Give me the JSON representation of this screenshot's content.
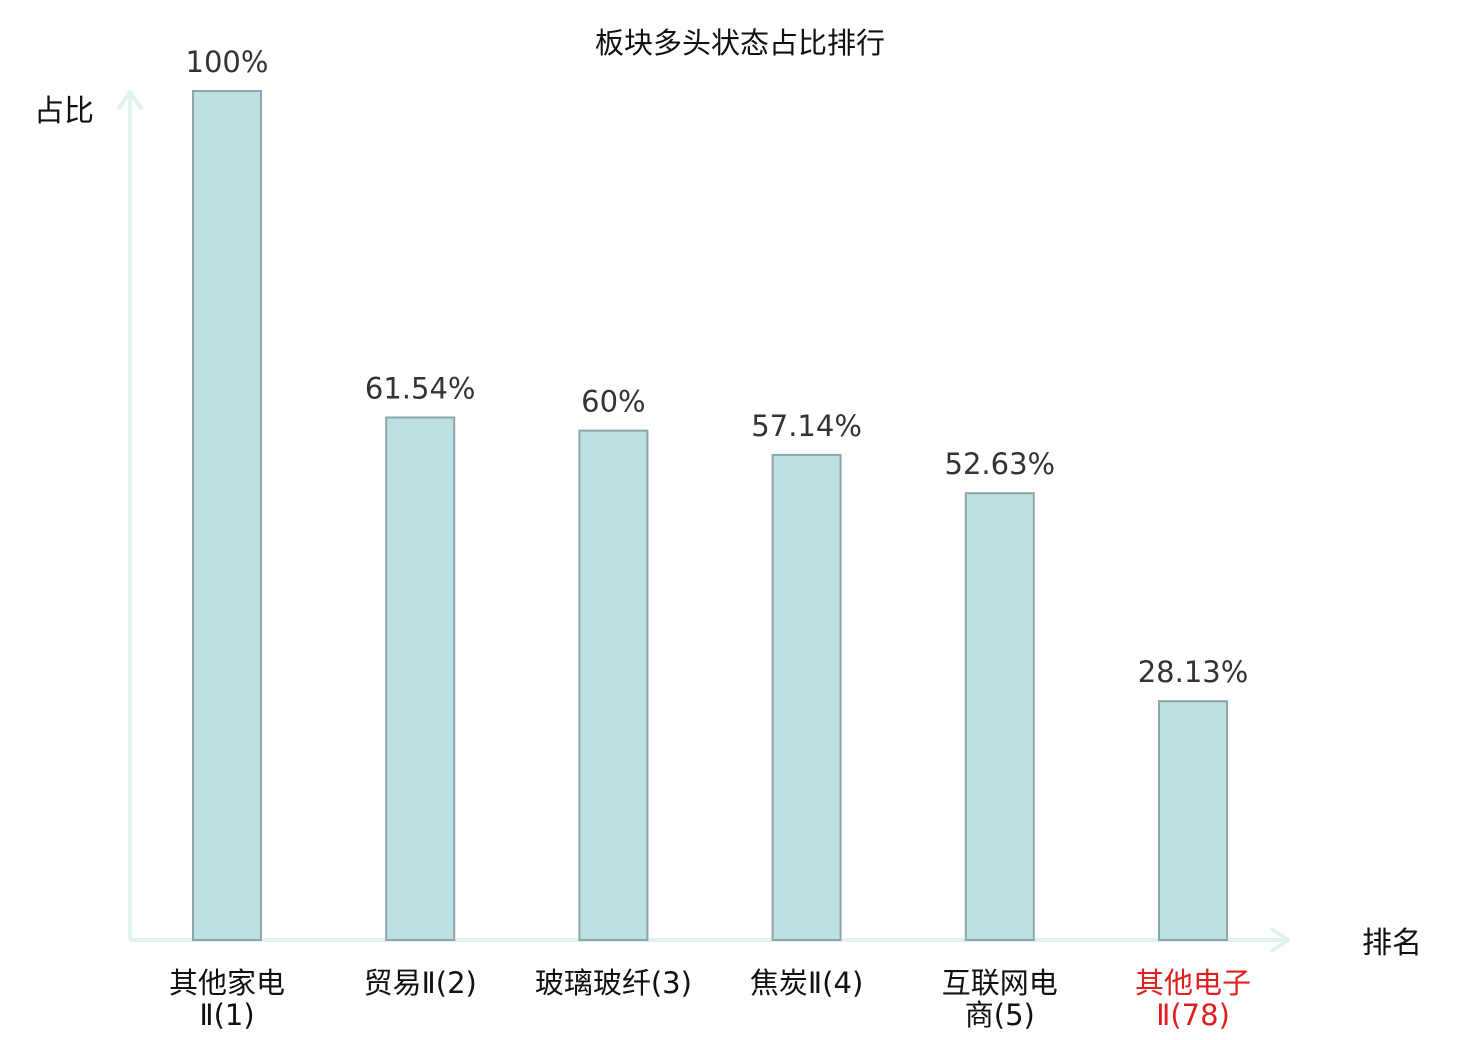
{
  "chart_data": {
    "type": "bar",
    "title": "板块多头状态占比排行",
    "ylabel": "占比",
    "xlabel": "排名",
    "ylim": [
      0,
      100
    ],
    "grid": false,
    "categories": [
      {
        "lines": [
          "其他家电",
          "Ⅱ(1)"
        ],
        "highlight": false
      },
      {
        "lines": [
          "贸易Ⅱ(2)"
        ],
        "highlight": false
      },
      {
        "lines": [
          "玻璃玻纤(3)"
        ],
        "highlight": false
      },
      {
        "lines": [
          "焦炭Ⅱ(4)"
        ],
        "highlight": false
      },
      {
        "lines": [
          "互联网电",
          "商(5)"
        ],
        "highlight": false
      },
      {
        "lines": [
          "其他电子",
          "Ⅱ(78)"
        ],
        "highlight": true
      }
    ],
    "values": [
      100,
      61.54,
      60,
      57.14,
      52.63,
      28.13
    ],
    "value_labels": [
      "100%",
      "61.54%",
      "60%",
      "57.14%",
      "52.63%",
      "28.13%"
    ],
    "colors": {
      "bar_fill": "#bde0e3",
      "bar_stroke": "#8ca6aa",
      "axis": "#e0f3f0",
      "highlight_text": "#e02020"
    }
  }
}
